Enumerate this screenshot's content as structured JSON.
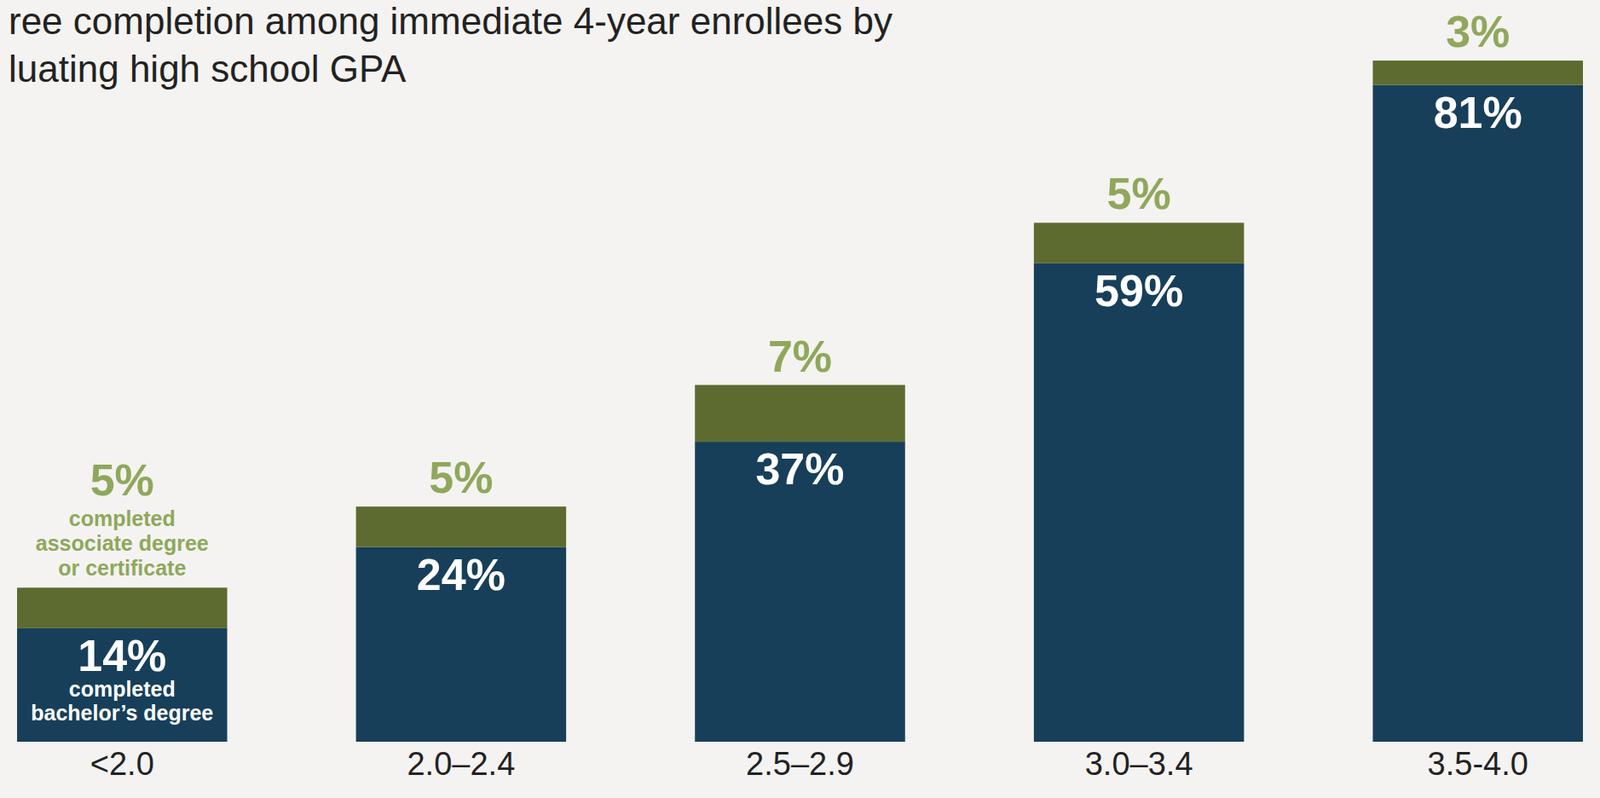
{
  "chart_data": {
    "type": "bar",
    "title": "ree completion among immediate 4-year enrollees by\nluating high school GPA",
    "categories": [
      "<2.0",
      "2.0–2.4",
      "2.5–2.9",
      "3.0–3.4",
      "3.5-4.0"
    ],
    "series": [
      {
        "name": "completed bachelor’s degree",
        "color": "#173f5a",
        "values": [
          14,
          24,
          37,
          59,
          81
        ],
        "value_labels": [
          "14%",
          "24%",
          "37%",
          "59%",
          "81%"
        ]
      },
      {
        "name": "completed associate degree or certificate",
        "color": "#5d6b30",
        "values": [
          5,
          5,
          7,
          5,
          3
        ],
        "value_labels": [
          "5%",
          "5%",
          "7%",
          "5%",
          "3%"
        ]
      }
    ],
    "stacked": true,
    "data_labels": true,
    "tick_labels": "x",
    "grid": false,
    "ylim": [
      0,
      90
    ]
  }
}
